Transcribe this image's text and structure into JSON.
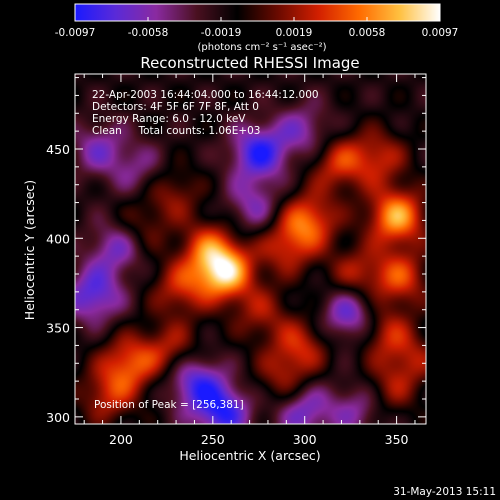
{
  "colorbar": {
    "ticks": [
      "-0.0097",
      "-0.0058",
      "-0.0019",
      "0.0019",
      "0.0058",
      "0.0097"
    ],
    "units_label": "(photons cm⁻² s⁻¹ asec⁻²)",
    "stops": [
      "#1a1aff",
      "#5a2ad8",
      "#8a2aa0",
      "#4a1020",
      "#000000",
      "#6a0a00",
      "#d21f00",
      "#ff6a00",
      "#ffc040",
      "#ffffff"
    ]
  },
  "chart_data": {
    "type": "heatmap",
    "title": "Reconstructed RHESSI Image",
    "xlabel": "Heliocentric X (arcsec)",
    "ylabel": "Heliocentric Y (arcsec)",
    "xlim": [
      175,
      366
    ],
    "ylim": [
      296,
      492
    ],
    "xticks": [
      200,
      250,
      300,
      350
    ],
    "yticks": [
      300,
      350,
      400,
      450
    ],
    "value_range": [
      -0.0097,
      0.0097
    ],
    "info_lines": [
      "22-Apr-2003 16:44:04.000 to 16:44:12.000",
      "Detectors: 4F 5F 6F 7F 8F, Att 0",
      "Energy Range: 6.0 - 12.0 keV",
      "Clean     Total counts: 1.06E+03"
    ],
    "peak_label": "Position of Peak = [256,381]",
    "peak_position": [
      256,
      381
    ],
    "blobs": [
      {
        "x": 256,
        "y": 381,
        "v": 0.0097
      },
      {
        "x": 248,
        "y": 395,
        "v": 0.005
      },
      {
        "x": 232,
        "y": 372,
        "v": 0.0045
      },
      {
        "x": 290,
        "y": 395,
        "v": 0.0045
      },
      {
        "x": 302,
        "y": 410,
        "v": 0.0065
      },
      {
        "x": 318,
        "y": 442,
        "v": 0.005
      },
      {
        "x": 340,
        "y": 445,
        "v": 0.0045
      },
      {
        "x": 350,
        "y": 412,
        "v": 0.0085
      },
      {
        "x": 352,
        "y": 378,
        "v": 0.0055
      },
      {
        "x": 328,
        "y": 380,
        "v": 0.004
      },
      {
        "x": 205,
        "y": 330,
        "v": 0.006
      },
      {
        "x": 193,
        "y": 312,
        "v": 0.0045
      },
      {
        "x": 228,
        "y": 338,
        "v": 0.004
      },
      {
        "x": 298,
        "y": 340,
        "v": 0.0045
      },
      {
        "x": 288,
        "y": 322,
        "v": 0.0035
      },
      {
        "x": 343,
        "y": 348,
        "v": 0.0045
      },
      {
        "x": 358,
        "y": 332,
        "v": 0.0035
      },
      {
        "x": 228,
        "y": 425,
        "v": 0.0035
      },
      {
        "x": 276,
        "y": 358,
        "v": 0.0035
      },
      {
        "x": 345,
        "y": 314,
        "v": 0.0035
      },
      {
        "x": 210,
        "y": 405,
        "v": 0.003
      },
      {
        "x": 185,
        "y": 368,
        "v": -0.006
      },
      {
        "x": 198,
        "y": 395,
        "v": -0.005
      },
      {
        "x": 240,
        "y": 320,
        "v": -0.006
      },
      {
        "x": 255,
        "y": 303,
        "v": -0.007
      },
      {
        "x": 275,
        "y": 448,
        "v": -0.007
      },
      {
        "x": 300,
        "y": 460,
        "v": -0.004
      },
      {
        "x": 188,
        "y": 450,
        "v": -0.004
      },
      {
        "x": 325,
        "y": 357,
        "v": -0.006
      },
      {
        "x": 300,
        "y": 303,
        "v": -0.005
      },
      {
        "x": 330,
        "y": 305,
        "v": -0.004
      },
      {
        "x": 210,
        "y": 438,
        "v": -0.003
      },
      {
        "x": 272,
        "y": 418,
        "v": -0.004
      }
    ]
  },
  "footer": {
    "timestamp": "31-May-2013 15:11"
  }
}
